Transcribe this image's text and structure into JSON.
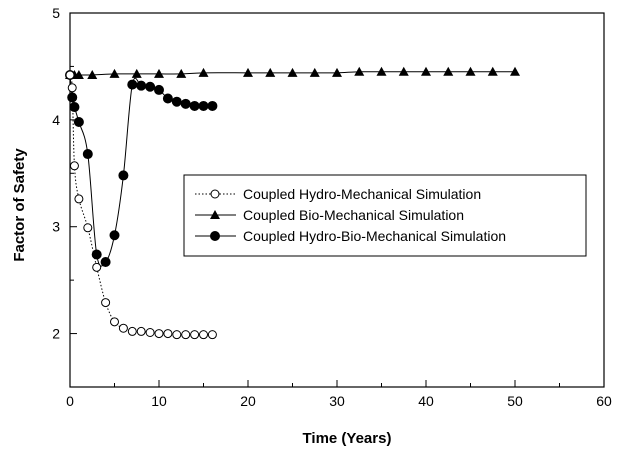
{
  "chart_data": {
    "type": "line",
    "xlabel": "Time (Years)",
    "ylabel": "Factor of Safety",
    "xlim": [
      0,
      60
    ],
    "ylim": [
      1.5,
      5
    ],
    "xticks": [
      0,
      10,
      20,
      30,
      40,
      50,
      60
    ],
    "yticks": [
      2,
      3,
      4,
      5
    ],
    "grid": false,
    "legend_position": "center-right",
    "series": [
      {
        "name": "Coupled Hydro-Mechanical Simulation",
        "marker": "open-circle",
        "line_style": "dotted",
        "x": [
          0,
          0.25,
          0.5,
          1,
          2,
          3,
          4,
          5,
          6,
          7,
          8,
          9,
          10,
          11,
          12,
          13,
          14,
          15,
          16
        ],
        "y": [
          4.42,
          4.3,
          3.57,
          3.26,
          2.99,
          2.62,
          2.29,
          2.11,
          2.05,
          2.02,
          2.02,
          2.01,
          2.0,
          2.0,
          1.99,
          1.99,
          1.99,
          1.99,
          1.99
        ]
      },
      {
        "name": "Coupled Bio-Mechanical Simulation",
        "marker": "filled-triangle",
        "line_style": "solid",
        "x": [
          0,
          0.5,
          1,
          2.5,
          5,
          7.5,
          10,
          12.5,
          15,
          20,
          22.5,
          25,
          27.5,
          30,
          32.5,
          35,
          37.5,
          40,
          42.5,
          45,
          47.5,
          50
        ],
        "y": [
          4.42,
          4.42,
          4.42,
          4.42,
          4.43,
          4.43,
          4.43,
          4.43,
          4.44,
          4.44,
          4.44,
          4.44,
          4.44,
          4.44,
          4.45,
          4.45,
          4.45,
          4.45,
          4.45,
          4.45,
          4.45,
          4.45
        ]
      },
      {
        "name": "Coupled Hydro-Bio-Mechanical Simulation",
        "marker": "filled-circle",
        "line_style": "solid",
        "x": [
          0,
          0.25,
          0.5,
          1,
          2,
          3,
          4,
          5,
          6,
          7,
          8,
          9,
          10,
          11,
          12,
          13,
          14,
          15,
          16
        ],
        "y": [
          4.42,
          4.21,
          4.12,
          3.98,
          3.68,
          2.74,
          2.67,
          2.92,
          3.48,
          4.33,
          4.32,
          4.31,
          4.28,
          4.2,
          4.17,
          4.15,
          4.13,
          4.13,
          4.13
        ]
      }
    ]
  }
}
